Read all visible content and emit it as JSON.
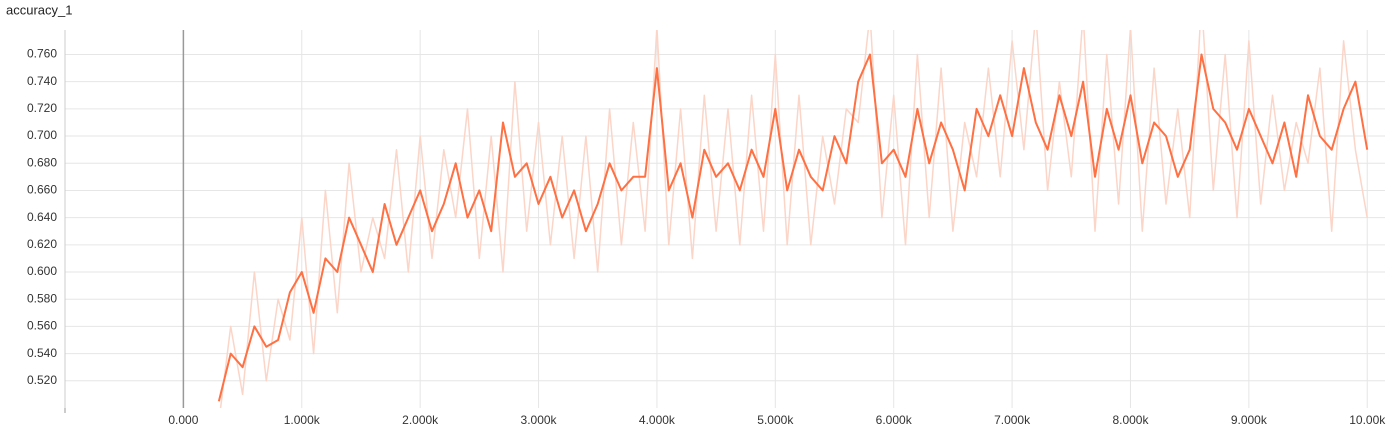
{
  "chart_data": {
    "type": "line",
    "title": "accuracy_1",
    "x": [
      300,
      400,
      500,
      600,
      700,
      800,
      900,
      1000,
      1100,
      1200,
      1300,
      1400,
      1500,
      1600,
      1700,
      1800,
      1900,
      2000,
      2100,
      2200,
      2300,
      2400,
      2500,
      2600,
      2700,
      2800,
      2900,
      3000,
      3100,
      3200,
      3300,
      3400,
      3500,
      3600,
      3700,
      3800,
      3900,
      4000,
      4100,
      4200,
      4300,
      4400,
      4500,
      4600,
      4700,
      4800,
      4900,
      5000,
      5100,
      5200,
      5300,
      5400,
      5500,
      5600,
      5700,
      5800,
      5900,
      6000,
      6100,
      6200,
      6300,
      6400,
      6500,
      6600,
      6700,
      6800,
      6900,
      7000,
      7100,
      7200,
      7300,
      7400,
      7500,
      7600,
      7700,
      7800,
      7900,
      8000,
      8100,
      8200,
      8300,
      8400,
      8500,
      8600,
      8700,
      8800,
      8900,
      9000,
      9100,
      9200,
      9300,
      9400,
      9500,
      9600,
      9700,
      9800,
      9900,
      10000
    ],
    "series": [
      {
        "color": "#fbd5c8",
        "values": [
          0.49,
          0.56,
          0.51,
          0.6,
          0.52,
          0.58,
          0.55,
          0.64,
          0.54,
          0.66,
          0.57,
          0.68,
          0.6,
          0.64,
          0.61,
          0.69,
          0.6,
          0.7,
          0.61,
          0.69,
          0.64,
          0.72,
          0.61,
          0.7,
          0.6,
          0.74,
          0.63,
          0.71,
          0.62,
          0.7,
          0.61,
          0.7,
          0.6,
          0.72,
          0.62,
          0.71,
          0.63,
          0.78,
          0.62,
          0.72,
          0.61,
          0.73,
          0.63,
          0.72,
          0.62,
          0.73,
          0.63,
          0.76,
          0.62,
          0.73,
          0.62,
          0.7,
          0.65,
          0.72,
          0.71,
          0.79,
          0.64,
          0.73,
          0.62,
          0.76,
          0.64,
          0.75,
          0.63,
          0.71,
          0.67,
          0.75,
          0.67,
          0.77,
          0.69,
          0.79,
          0.66,
          0.74,
          0.67,
          0.79,
          0.63,
          0.76,
          0.65,
          0.78,
          0.63,
          0.75,
          0.65,
          0.72,
          0.64,
          0.8,
          0.66,
          0.76,
          0.64,
          0.77,
          0.65,
          0.73,
          0.66,
          0.71,
          0.68,
          0.75,
          0.63,
          0.77,
          0.69,
          0.64
        ]
      },
      {
        "color": "#ff7043",
        "values": [
          0.505,
          0.54,
          0.53,
          0.56,
          0.545,
          0.55,
          0.585,
          0.6,
          0.57,
          0.61,
          0.6,
          0.64,
          0.62,
          0.6,
          0.65,
          0.62,
          0.64,
          0.66,
          0.63,
          0.65,
          0.68,
          0.64,
          0.66,
          0.63,
          0.71,
          0.67,
          0.68,
          0.65,
          0.67,
          0.64,
          0.66,
          0.63,
          0.65,
          0.68,
          0.66,
          0.67,
          0.67,
          0.75,
          0.66,
          0.68,
          0.64,
          0.69,
          0.67,
          0.68,
          0.66,
          0.69,
          0.67,
          0.72,
          0.66,
          0.69,
          0.67,
          0.66,
          0.7,
          0.68,
          0.74,
          0.76,
          0.68,
          0.69,
          0.67,
          0.72,
          0.68,
          0.71,
          0.69,
          0.66,
          0.72,
          0.7,
          0.73,
          0.7,
          0.75,
          0.71,
          0.69,
          0.73,
          0.7,
          0.74,
          0.67,
          0.72,
          0.69,
          0.73,
          0.68,
          0.71,
          0.7,
          0.67,
          0.69,
          0.76,
          0.72,
          0.71,
          0.69,
          0.72,
          0.7,
          0.68,
          0.71,
          0.67,
          0.73,
          0.7,
          0.69,
          0.72,
          0.74,
          0.69
        ]
      }
    ],
    "xlim": [
      -1000,
      10150
    ],
    "ylim": [
      0.5,
      0.778
    ],
    "xticks": [
      {
        "value": 0,
        "label": "0.000"
      },
      {
        "value": 1000,
        "label": "1.000k"
      },
      {
        "value": 2000,
        "label": "2.000k"
      },
      {
        "value": 3000,
        "label": "3.000k"
      },
      {
        "value": 4000,
        "label": "4.000k"
      },
      {
        "value": 5000,
        "label": "5.000k"
      },
      {
        "value": 6000,
        "label": "6.000k"
      },
      {
        "value": 7000,
        "label": "7.000k"
      },
      {
        "value": 8000,
        "label": "8.000k"
      },
      {
        "value": 9000,
        "label": "9.000k"
      },
      {
        "value": 10000,
        "label": "10.00k"
      }
    ],
    "yticks": [
      {
        "value": 0.52,
        "label": "0.520"
      },
      {
        "value": 0.54,
        "label": "0.540"
      },
      {
        "value": 0.56,
        "label": "0.560"
      },
      {
        "value": 0.58,
        "label": "0.580"
      },
      {
        "value": 0.6,
        "label": "0.600"
      },
      {
        "value": 0.62,
        "label": "0.620"
      },
      {
        "value": 0.64,
        "label": "0.640"
      },
      {
        "value": 0.66,
        "label": "0.660"
      },
      {
        "value": 0.68,
        "label": "0.680"
      },
      {
        "value": 0.7,
        "label": "0.700"
      },
      {
        "value": 0.72,
        "label": "0.720"
      },
      {
        "value": 0.74,
        "label": "0.740"
      },
      {
        "value": 0.76,
        "label": "0.760"
      }
    ],
    "grid": true
  }
}
